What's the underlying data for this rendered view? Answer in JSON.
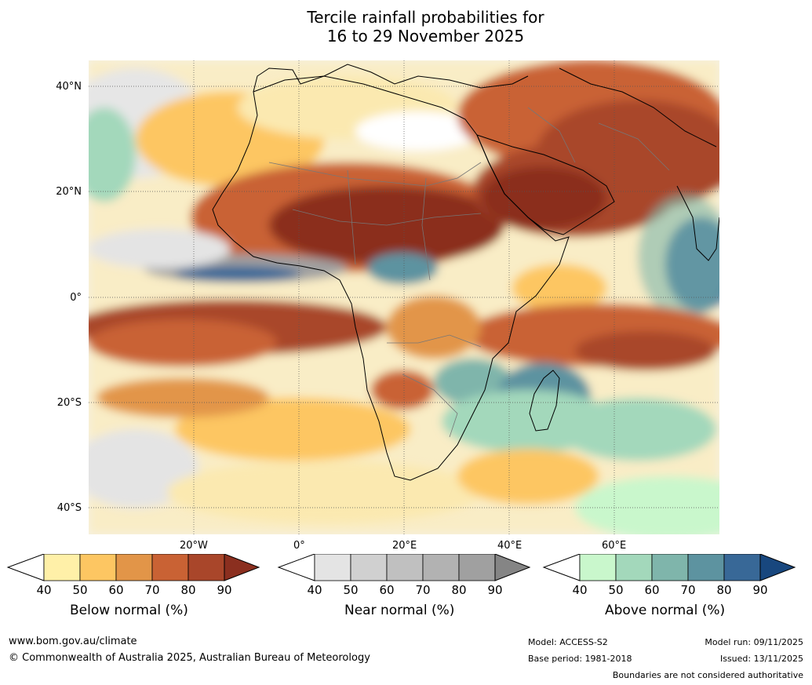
{
  "title": {
    "line1": "Tercile rainfall probabilities for",
    "line2": "16 to 29 November 2025"
  },
  "map": {
    "lat_labels": [
      "40°N",
      "20°N",
      "0°",
      "20°S",
      "40°S"
    ],
    "lon_labels": [
      "20°W",
      "0°",
      "20°E",
      "40°E",
      "60°E"
    ]
  },
  "legends": [
    {
      "label": "Below normal (%)",
      "ticks": [
        "40",
        "50",
        "60",
        "70",
        "80",
        "90"
      ],
      "colors": [
        "#fff0a8",
        "#fdc662",
        "#e29548",
        "#c96234",
        "#a9462a",
        "#8b2f1f"
      ]
    },
    {
      "label": "Near normal (%)",
      "ticks": [
        "40",
        "50",
        "60",
        "70",
        "80",
        "90"
      ],
      "colors": [
        "#e4e4e4",
        "#d0d0d0",
        "#c0c0c0",
        "#b2b2b2",
        "#a0a0a0",
        "#858585"
      ]
    },
    {
      "label": "Above normal (%)",
      "ticks": [
        "40",
        "50",
        "60",
        "70",
        "80",
        "90"
      ],
      "colors": [
        "#c9f7cc",
        "#a3d8bb",
        "#7fb5ab",
        "#5d93a0",
        "#386897",
        "#18477e"
      ]
    }
  ],
  "footer": {
    "url": "www.bom.gov.au/climate",
    "copyright": "© Commonwealth of Australia 2025, Australian Bureau of Meteorology",
    "model": "Model: ACCESS-S2",
    "base_period": "Base period: 1981-2018",
    "model_run": "Model run: 09/11/2025",
    "issued": "Issued: 13/11/2025",
    "disclaimer": "Boundaries are not considered authoritative"
  }
}
